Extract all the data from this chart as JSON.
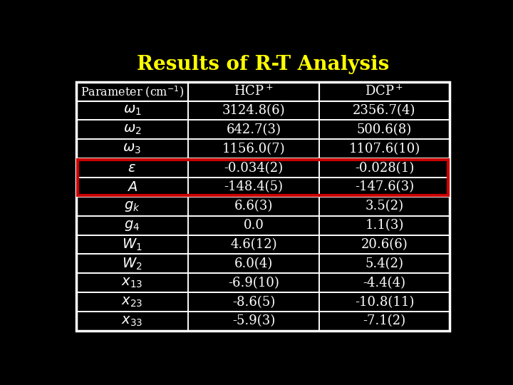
{
  "title": "Results of R-T Analysis",
  "title_color": "#FFFF00",
  "background_color": "#000000",
  "table_text_color": "#FFFFFF",
  "border_color": "#FFFFFF",
  "highlight_color": "#CC0000",
  "col_headers": [
    "Parameter (cm⁻¹)",
    "HCP⁺",
    "DCP⁺"
  ],
  "rows": [
    [
      "ω₁",
      "3124.8(6)",
      "2356.7(4)"
    ],
    [
      "ω₂",
      "642.7(3)",
      "500.6(8)"
    ],
    [
      "ω₃",
      "1156.0(7)",
      "1107.6(10)"
    ],
    [
      "ε",
      "-0.034(2)",
      "-0.028(1)"
    ],
    [
      "A",
      "-148.4(5)",
      "-147.6(3)"
    ],
    [
      "gk",
      "6.6(3)",
      "3.5(2)"
    ],
    [
      "g4",
      "0.0",
      "1.1(3)"
    ],
    [
      "W1",
      "4.6(12)",
      "20.6(6)"
    ],
    [
      "W2",
      "6.0(4)",
      "5.4(2)"
    ],
    [
      "x13",
      "-6.9(10)",
      "-4.4(4)"
    ],
    [
      "x23",
      "-8.6(5)",
      "-10.8(11)"
    ],
    [
      "x33",
      "-5.9(3)",
      "-7.1(2)"
    ]
  ],
  "row_math": [
    "$\\omega_1$",
    "$\\omega_2$",
    "$\\omega_3$",
    "$\\varepsilon$",
    "$A$",
    "$g_k$",
    "$g_4$",
    "$W_1$",
    "$W_2$",
    "$x_{13}$",
    "$x_{23}$",
    "$x_{33}$"
  ],
  "highlight_rows": [
    3,
    4
  ]
}
